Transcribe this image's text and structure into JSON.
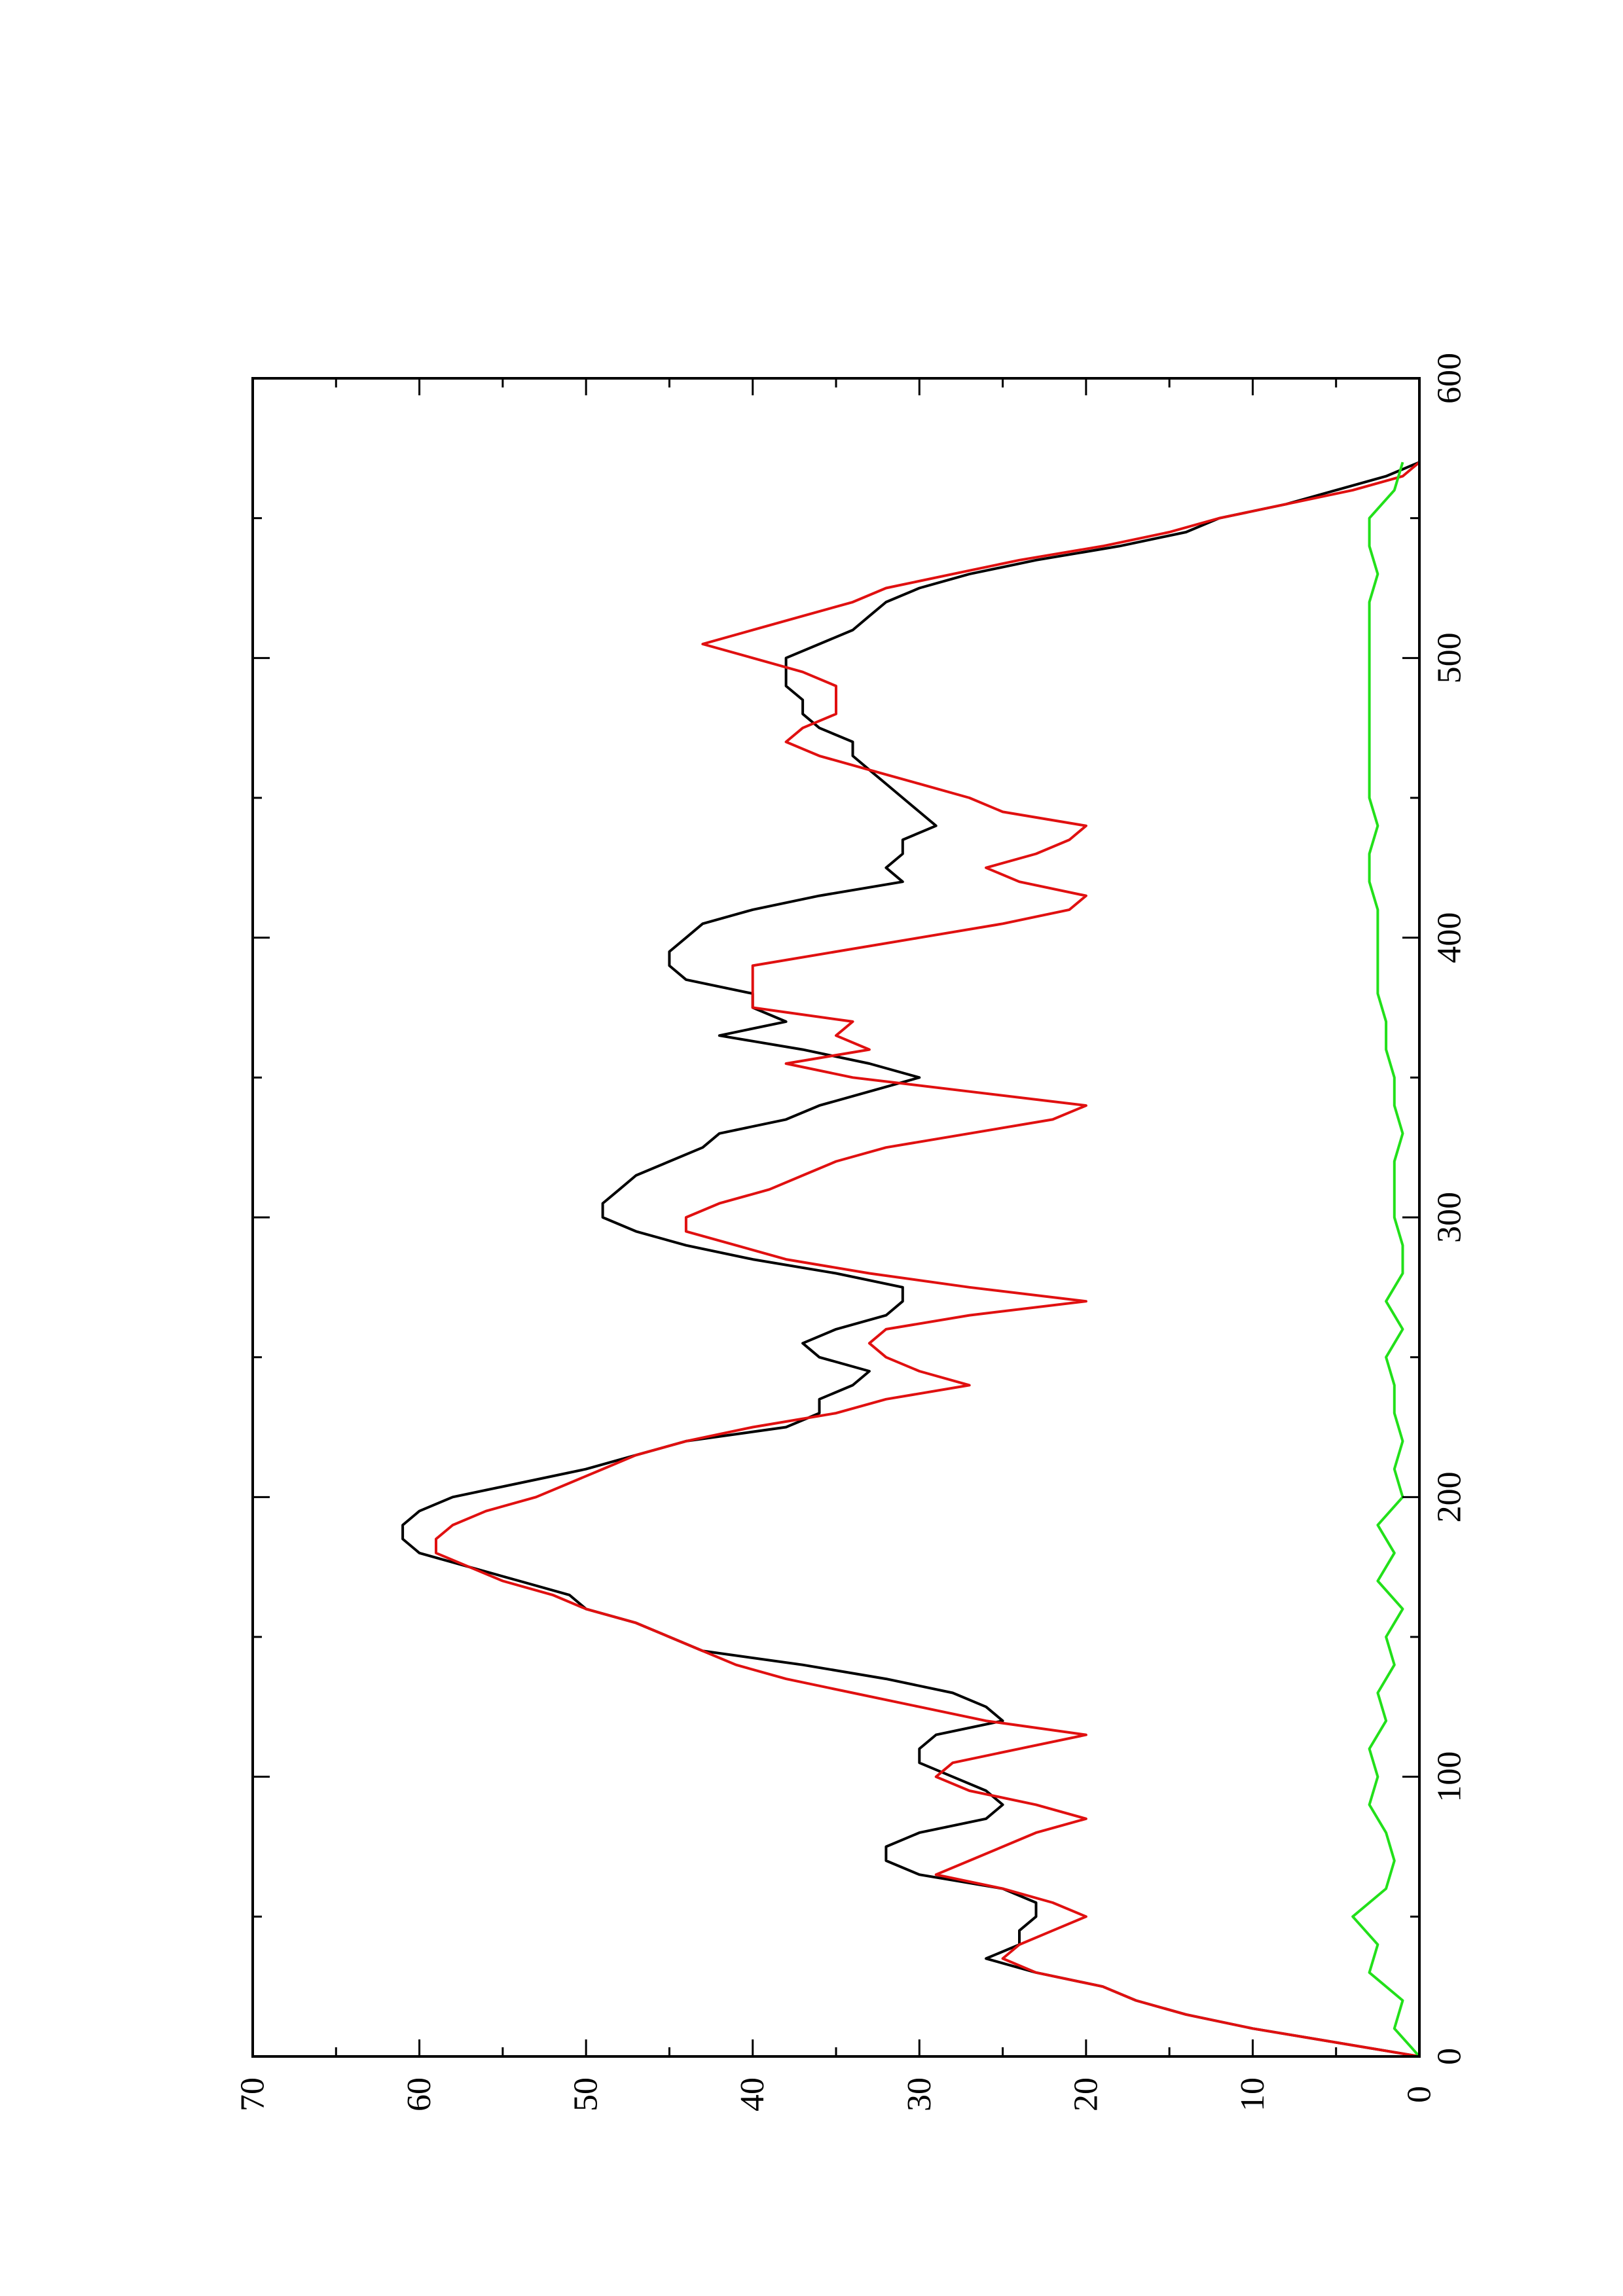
{
  "chart_data": {
    "type": "line",
    "orientation": "rotated-90-ccw",
    "title": "",
    "xlabel": "",
    "ylabel": "",
    "xlim": [
      0,
      600
    ],
    "ylim": [
      0,
      70
    ],
    "x_ticks": [
      0,
      100,
      200,
      300,
      400,
      500,
      600
    ],
    "y_ticks": [
      0,
      10,
      20,
      30,
      40,
      50,
      60,
      70
    ],
    "x_tick_labels": [
      "0",
      "100",
      "200",
      "300",
      "400",
      "500",
      "600"
    ],
    "y_tick_labels": [
      "0",
      "10",
      "20",
      "30",
      "40",
      "50",
      "60",
      "70"
    ],
    "grid": false,
    "legend": "none",
    "series": [
      {
        "color": "#000000",
        "x": [
          0,
          5,
          10,
          15,
          20,
          25,
          30,
          35,
          40,
          45,
          50,
          55,
          60,
          65,
          70,
          75,
          80,
          85,
          90,
          95,
          100,
          105,
          110,
          115,
          120,
          125,
          130,
          135,
          140,
          145,
          150,
          155,
          160,
          165,
          170,
          175,
          180,
          185,
          190,
          195,
          200,
          205,
          210,
          215,
          220,
          225,
          230,
          235,
          240,
          245,
          250,
          255,
          260,
          265,
          270,
          275,
          280,
          285,
          290,
          295,
          300,
          305,
          310,
          315,
          320,
          325,
          330,
          335,
          340,
          345,
          350,
          355,
          360,
          365,
          370,
          375,
          380,
          385,
          390,
          395,
          400,
          405,
          410,
          415,
          420,
          425,
          430,
          435,
          440,
          445,
          450,
          455,
          460,
          465,
          470,
          475,
          480,
          485,
          490,
          495,
          500,
          505,
          510,
          515,
          520,
          525,
          530,
          535,
          540,
          545,
          550,
          555,
          560,
          565,
          570
        ],
        "y": [
          0,
          5,
          10,
          14,
          17,
          19,
          23,
          26,
          24,
          24,
          23,
          23,
          25,
          30,
          32,
          32,
          30,
          26,
          25,
          26,
          28,
          30,
          30,
          29,
          25,
          26,
          28,
          32,
          37,
          43,
          45,
          47,
          50,
          51,
          54,
          57,
          60,
          61,
          61,
          60,
          58,
          54,
          50,
          47,
          44,
          38,
          36,
          36,
          34,
          33,
          36,
          37,
          35,
          32,
          31,
          31,
          35,
          40,
          44,
          47,
          49,
          49,
          48,
          47,
          45,
          43,
          42,
          38,
          36,
          33,
          30,
          33,
          37,
          42,
          38,
          40,
          40,
          44,
          45,
          45,
          44,
          43,
          40,
          36,
          31,
          32,
          31,
          31,
          29,
          30,
          31,
          32,
          33,
          34,
          34,
          36,
          37,
          37,
          38,
          38,
          38,
          36,
          34,
          33,
          32,
          30,
          27,
          23,
          18,
          14,
          12,
          8,
          5,
          2,
          0
        ]
      },
      {
        "color": "#e01010",
        "x": [
          0,
          5,
          10,
          15,
          20,
          25,
          30,
          35,
          40,
          45,
          50,
          55,
          60,
          65,
          70,
          75,
          80,
          85,
          90,
          95,
          100,
          105,
          110,
          115,
          120,
          125,
          130,
          135,
          140,
          145,
          150,
          155,
          160,
          165,
          170,
          175,
          180,
          185,
          190,
          195,
          200,
          205,
          210,
          215,
          220,
          225,
          230,
          235,
          240,
          245,
          250,
          255,
          260,
          265,
          270,
          275,
          280,
          285,
          290,
          295,
          300,
          305,
          310,
          315,
          320,
          325,
          330,
          335,
          340,
          345,
          350,
          355,
          360,
          365,
          370,
          375,
          380,
          385,
          390,
          395,
          400,
          405,
          410,
          415,
          420,
          425,
          430,
          435,
          440,
          445,
          450,
          455,
          460,
          465,
          470,
          475,
          480,
          485,
          490,
          495,
          500,
          505,
          510,
          515,
          520,
          525,
          530,
          535,
          540,
          545,
          550,
          555,
          560,
          565,
          570
        ],
        "y": [
          0,
          5,
          10,
          14,
          17,
          19,
          23,
          25,
          24,
          22,
          20,
          22,
          25,
          29,
          27,
          25,
          23,
          20,
          23,
          27,
          29,
          28,
          24,
          20,
          26,
          30,
          34,
          38,
          41,
          43,
          45,
          47,
          50,
          52,
          55,
          57,
          59,
          59,
          58,
          56,
          53,
          51,
          49,
          47,
          44,
          40,
          35,
          32,
          27,
          30,
          32,
          33,
          32,
          27,
          20,
          27,
          33,
          38,
          41,
          44,
          44,
          42,
          39,
          37,
          35,
          32,
          27,
          22,
          20,
          27,
          34,
          38,
          33,
          35,
          34,
          40,
          40,
          40,
          40,
          35,
          30,
          25,
          21,
          20,
          24,
          26,
          23,
          21,
          20,
          25,
          27,
          30,
          33,
          36,
          38,
          37,
          35,
          35,
          35,
          37,
          40,
          43,
          40,
          37,
          34,
          32,
          28,
          24,
          19,
          15,
          12,
          8,
          4,
          1,
          0
        ]
      },
      {
        "color": "#22e01a",
        "x": [
          0,
          10,
          20,
          30,
          40,
          50,
          60,
          70,
          80,
          90,
          100,
          110,
          120,
          130,
          140,
          150,
          160,
          170,
          180,
          190,
          200,
          210,
          220,
          230,
          240,
          250,
          260,
          270,
          280,
          290,
          300,
          310,
          320,
          330,
          340,
          350,
          360,
          370,
          380,
          390,
          400,
          410,
          420,
          430,
          440,
          450,
          460,
          470,
          480,
          490,
          500,
          510,
          520,
          530,
          540,
          550,
          560,
          570
        ],
        "y": [
          0,
          1.5,
          1,
          3,
          2.5,
          4,
          2,
          1.5,
          2,
          3,
          2.5,
          3,
          2,
          2.5,
          1.5,
          2,
          1,
          2.5,
          1.5,
          2.5,
          1,
          1.5,
          1,
          1.5,
          1.5,
          2,
          1,
          2,
          1,
          1,
          1.5,
          1.5,
          1.5,
          1,
          1.5,
          1.5,
          2,
          2,
          2.5,
          2.5,
          2.5,
          2.5,
          3,
          3,
          2.5,
          3,
          3,
          3,
          3,
          3,
          3,
          3,
          3,
          2.5,
          3,
          3,
          1.5,
          1
        ]
      }
    ]
  }
}
